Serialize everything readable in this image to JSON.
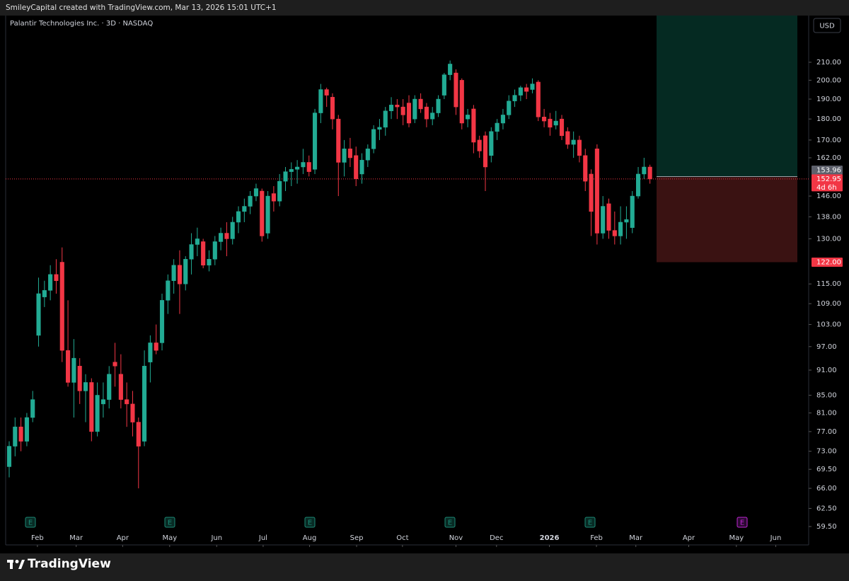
{
  "header": "SmileyCapital created with TradingView.com, Mar 13, 2026 15:01 UTC+1",
  "footer": {
    "brand": "TradingView"
  },
  "chart_data": {
    "type": "candlestick",
    "title": "Palantir Technologies Inc. · 3D · NASDAQ",
    "currency": "USD",
    "log_scale": true,
    "grid": false,
    "up_color": "#22ab94",
    "down_color": "#f23645",
    "categories": [
      null,
      null,
      null,
      null,
      null,
      null,
      null,
      null,
      null,
      null,
      null,
      null,
      null,
      null,
      null,
      null,
      null,
      null,
      null,
      null,
      null,
      null,
      null,
      null,
      null,
      null,
      null,
      null,
      null,
      null,
      null,
      null,
      null,
      null,
      null,
      null,
      null,
      null,
      null,
      null,
      null,
      null,
      null,
      null,
      null,
      null,
      null,
      null,
      null,
      null,
      null,
      null,
      null,
      null,
      null,
      null,
      null,
      null,
      null,
      null,
      null,
      null,
      null,
      null,
      null,
      null,
      null,
      null,
      null,
      null,
      null,
      null,
      null,
      null,
      null,
      null,
      null,
      null,
      null,
      null,
      null,
      null,
      null,
      null,
      null,
      null,
      null,
      null,
      null,
      null,
      null,
      null,
      null,
      null,
      null,
      null,
      null,
      null,
      null,
      null,
      null,
      null,
      null,
      null,
      null,
      null,
      null,
      null,
      null,
      null
    ],
    "open": [
      70,
      74,
      78,
      75,
      80,
      100,
      111,
      113,
      118,
      122,
      96,
      88,
      92,
      86,
      88,
      77,
      83,
      84,
      93,
      90,
      84,
      83,
      79,
      75,
      93,
      98,
      98,
      110,
      116,
      121,
      115,
      123,
      128,
      129,
      121,
      123,
      129,
      132,
      130,
      136,
      140,
      142,
      146,
      148,
      132,
      147,
      144,
      152,
      156,
      157,
      158,
      160,
      157,
      183,
      195,
      191,
      180,
      160,
      166,
      163,
      155,
      161,
      166,
      175,
      176,
      184,
      187,
      186,
      188,
      180,
      190,
      186,
      180,
      183,
      192,
      203,
      204,
      200,
      180,
      185,
      170,
      172,
      163,
      174,
      178,
      182,
      189,
      192,
      196,
      195,
      199,
      181,
      180,
      177,
      180,
      174,
      168,
      170,
      163,
      155,
      166,
      132,
      143,
      133,
      131,
      136,
      134,
      146,
      155,
      158
    ],
    "high": [
      75,
      80,
      80,
      81,
      86,
      117,
      116,
      121,
      123,
      127,
      110,
      99,
      94,
      90,
      89,
      88,
      88,
      92,
      98,
      95,
      88,
      86,
      80,
      96,
      100,
      103,
      112,
      118,
      123,
      126,
      124,
      132,
      134,
      130,
      126,
      131,
      134,
      136,
      138,
      142,
      145,
      148,
      151,
      149,
      148,
      150,
      155,
      158,
      160,
      161,
      166,
      163,
      185,
      198,
      196,
      193,
      182,
      170,
      171,
      167,
      164,
      168,
      177,
      180,
      186,
      191,
      190,
      190,
      192,
      192,
      193,
      188,
      186,
      192,
      204,
      211,
      206,
      201,
      185,
      187,
      172,
      174,
      176,
      180,
      185,
      192,
      195,
      197,
      198,
      201,
      200,
      185,
      183,
      184,
      182,
      176,
      174,
      172,
      166,
      157,
      168,
      146,
      145,
      140,
      142,
      142,
      148,
      158,
      162,
      159
    ],
    "low": [
      68,
      72,
      73,
      74,
      79,
      97,
      108,
      110,
      112,
      93,
      87,
      80,
      83,
      79,
      75,
      76,
      80,
      82,
      87,
      82,
      78,
      76,
      66,
      74,
      88,
      95,
      96,
      106,
      112,
      106,
      113,
      118,
      124,
      120,
      119,
      121,
      126,
      124,
      128,
      132,
      136,
      139,
      144,
      129,
      130,
      140,
      142,
      148,
      150,
      151,
      155,
      154,
      155,
      178,
      186,
      175,
      146,
      154,
      158,
      150,
      151,
      158,
      164,
      170,
      172,
      180,
      180,
      177,
      176,
      178,
      183,
      176,
      177,
      181,
      190,
      200,
      182,
      175,
      176,
      164,
      162,
      148,
      160,
      170,
      175,
      180,
      186,
      189,
      190,
      193,
      179,
      176,
      172,
      175,
      170,
      166,
      162,
      160,
      148,
      131,
      128,
      130,
      130,
      128,
      128,
      130,
      132,
      145,
      153,
      151
    ],
    "close": [
      74,
      78,
      75,
      80,
      84,
      112,
      113,
      118,
      116,
      96,
      88,
      94,
      86,
      88,
      77,
      85,
      84,
      90,
      92,
      84,
      83,
      79,
      74,
      92,
      98,
      96,
      110,
      116,
      121,
      115,
      123,
      128,
      130,
      121,
      123,
      129,
      132,
      130,
      136,
      140,
      142,
      146,
      149,
      131,
      146,
      144,
      152,
      156,
      157,
      158,
      160,
      156,
      183,
      195,
      192,
      180,
      160,
      166,
      162,
      153,
      161,
      166,
      175,
      176,
      184,
      187,
      186,
      182,
      178,
      190,
      185,
      180,
      183,
      190,
      203,
      209,
      186,
      178,
      182,
      169,
      165,
      158,
      174,
      178,
      182,
      189,
      192,
      196,
      194,
      198,
      181,
      179,
      176,
      179,
      172,
      168,
      170,
      163,
      152,
      140,
      132,
      142,
      133,
      131,
      136,
      137,
      146,
      155,
      158,
      152.95
    ],
    "ylim": [
      56.6,
      238.4
    ],
    "yticks": [
      {
        "value": 59.5,
        "label": "59.50"
      },
      {
        "value": 62.5,
        "label": "62.50"
      },
      {
        "value": 66,
        "label": "66.00"
      },
      {
        "value": 69.5,
        "label": "69.50"
      },
      {
        "value": 73,
        "label": "73.00"
      },
      {
        "value": 77,
        "label": "77.00"
      },
      {
        "value": 81,
        "label": "81.00"
      },
      {
        "value": 85,
        "label": "85.00"
      },
      {
        "value": 91,
        "label": "91.00"
      },
      {
        "value": 97,
        "label": "97.00"
      },
      {
        "value": 103,
        "label": "103.00"
      },
      {
        "value": 109,
        "label": "109.00"
      },
      {
        "value": 115,
        "label": "115.00"
      },
      {
        "value": 130,
        "label": "130.00"
      },
      {
        "value": 138,
        "label": "138.00"
      },
      {
        "value": 146,
        "label": "146.00"
      },
      {
        "value": 162,
        "label": "162.00"
      },
      {
        "value": 170,
        "label": "170.00"
      },
      {
        "value": 180,
        "label": "180.00"
      },
      {
        "value": 190,
        "label": "190.00"
      },
      {
        "value": 200,
        "label": "200.00"
      },
      {
        "value": 210,
        "label": "210.00"
      }
    ],
    "xlim": [
      -0.6,
      136
    ],
    "xticks": [
      {
        "value": 4.8,
        "label": "Feb"
      },
      {
        "value": 11.4,
        "label": "Mar"
      },
      {
        "value": 19.3,
        "label": "Apr"
      },
      {
        "value": 27.3,
        "label": "May"
      },
      {
        "value": 35.3,
        "label": "Jun"
      },
      {
        "value": 43.2,
        "label": "Jul"
      },
      {
        "value": 51.1,
        "label": "Aug"
      },
      {
        "value": 59.1,
        "label": "Sep"
      },
      {
        "value": 66.9,
        "label": "Oct"
      },
      {
        "value": 76.0,
        "label": "Nov"
      },
      {
        "value": 82.9,
        "label": "Dec"
      },
      {
        "value": 91.9,
        "label": "2026"
      },
      {
        "value": 99.9,
        "label": "Feb"
      },
      {
        "value": 106.6,
        "label": "Mar"
      },
      {
        "value": 115.6,
        "label": "Apr"
      },
      {
        "value": 123.7,
        "label": "May"
      },
      {
        "value": 130.4,
        "label": "Jun"
      }
    ],
    "last_price": 152.95,
    "countdown": "4d 6h",
    "position": {
      "entry": 153.96,
      "stop": {
        "value": 122,
        "label": "122.00"
      }
    },
    "earnings": [
      "E",
      "E",
      "E",
      "E",
      "E",
      "E"
    ]
  }
}
